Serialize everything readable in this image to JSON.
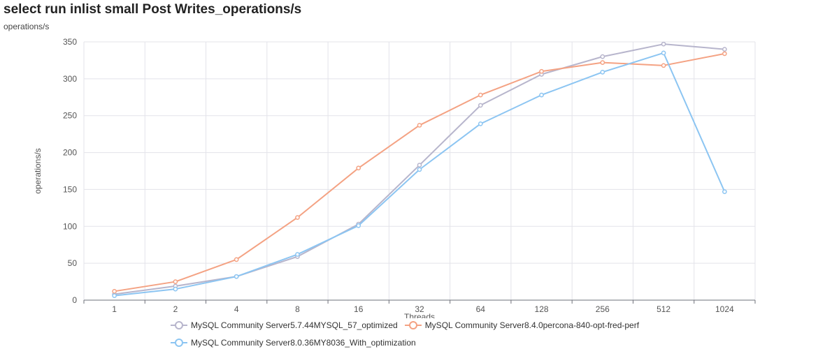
{
  "title": "select run inlist small Post Writes_operations/s",
  "subtitle": "operations/s",
  "chart_data": {
    "type": "line",
    "title": "select run inlist small Post Writes_operations/s",
    "xlabel": "Threads",
    "ylabel": "operations/s",
    "categories": [
      "1",
      "2",
      "4",
      "8",
      "16",
      "32",
      "64",
      "128",
      "256",
      "512",
      "1024"
    ],
    "ylim": [
      0,
      350
    ],
    "yticks": [
      0,
      50,
      100,
      150,
      200,
      250,
      300,
      350
    ],
    "grid": true,
    "legend_position": "bottom",
    "series": [
      {
        "name": "MySQL Community Server5.7.44MYSQL_57_optimized",
        "color": "#b7b5cc",
        "values": [
          8,
          19,
          32,
          59,
          103,
          183,
          264,
          306,
          330,
          347,
          340
        ]
      },
      {
        "name": "MySQL Community Server8.4.0percona-840-opt-fred-perf",
        "color": "#f4a283",
        "values": [
          12,
          25,
          55,
          112,
          179,
          237,
          278,
          310,
          322,
          318,
          334
        ]
      },
      {
        "name": "MySQL Community Server8.0.36MY8036_With_optimization",
        "color": "#8cc5f2",
        "values": [
          6,
          15,
          32,
          62,
          101,
          177,
          239,
          278,
          309,
          335,
          147
        ]
      }
    ]
  }
}
